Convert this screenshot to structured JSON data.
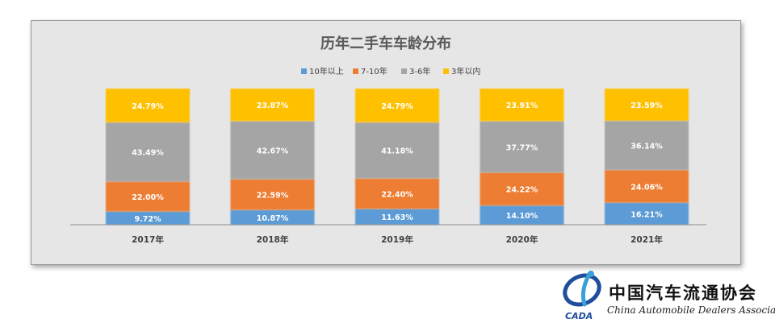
{
  "chart_data": {
    "type": "bar",
    "stacked": true,
    "title": "历年二手车车龄分布",
    "categories": [
      "2017年",
      "2018年",
      "2019年",
      "2020年",
      "2021年"
    ],
    "series": [
      {
        "name": "10年以上",
        "color": "#5b9bd5",
        "values": [
          9.72,
          10.87,
          11.63,
          14.1,
          16.21
        ],
        "labels": [
          "9.72%",
          "10.87%",
          "11.63%",
          "14.10%",
          "16.21%"
        ]
      },
      {
        "name": "7-10年",
        "color": "#ed7d31",
        "values": [
          22.0,
          22.59,
          22.4,
          24.22,
          24.06
        ],
        "labels": [
          "22.00%",
          "22.59%",
          "22.40%",
          "24.22%",
          "24.06%"
        ]
      },
      {
        "name": "3-6年",
        "color": "#a5a5a5",
        "values": [
          43.49,
          42.67,
          41.18,
          37.77,
          36.14
        ],
        "labels": [
          "43.49%",
          "42.67%",
          "41.18%",
          "37.77%",
          "36.14%"
        ]
      },
      {
        "name": "3年以内",
        "color": "#ffc000",
        "values": [
          24.79,
          23.87,
          24.79,
          23.91,
          23.59
        ],
        "labels": [
          "24.79%",
          "23.87%",
          "24.79%",
          "23.91%",
          "23.59%"
        ]
      }
    ],
    "ylim": [
      0,
      100
    ],
    "legend_position": "top",
    "grid": false
  },
  "logo": {
    "cn": "中国汽车流通协会",
    "en": "China Automobile Dealers Association",
    "abbr": "CADA"
  }
}
